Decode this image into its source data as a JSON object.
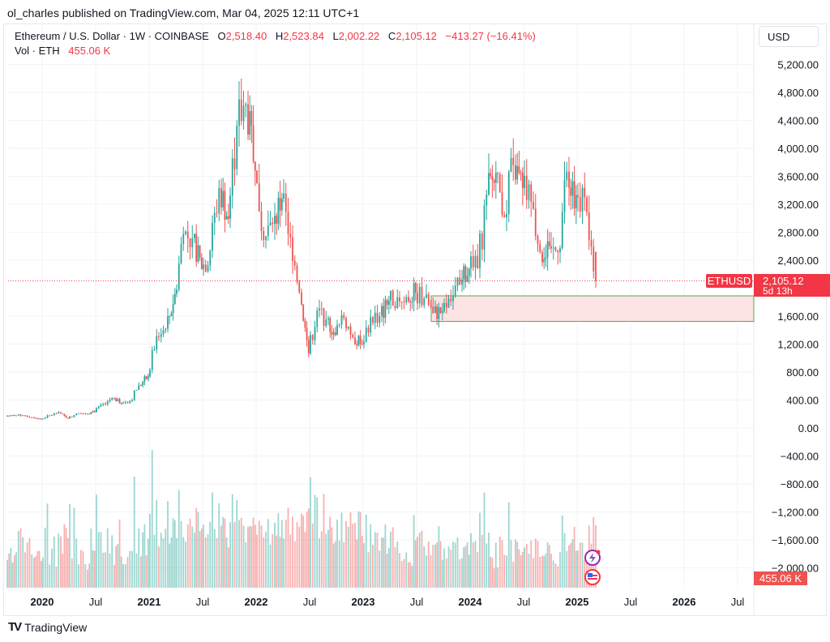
{
  "publisher_line": "ol_charles published on TradingView.com, Mar 04, 2025 12:11 UTC+1",
  "legend": {
    "symbol": "Ethereum / U.S. Dollar · 1W · COINBASE",
    "open_label": "O",
    "open": "2,518.40",
    "high_label": "H",
    "high": "2,523.84",
    "low_label": "L",
    "low": "2,002.22",
    "close_label": "C",
    "close": "2,105.12",
    "change": "−413.27 (−16.41%)",
    "vol_label": "Vol · ETH",
    "vol": "455.06 K"
  },
  "currency_button": "USD",
  "price_tag": {
    "symbol": "ETHUSD",
    "price": "2,105.12",
    "countdown": "5d 13h"
  },
  "volume_tag": "455.06 K",
  "brand": "TradingView",
  "colors": {
    "up": "#26a69a",
    "down": "#ef5350",
    "zone_fill": "#fde3e4",
    "zone_border": "#4caf50",
    "tag": "#f23645"
  },
  "chart_data": {
    "type": "candlestick",
    "interval": "1W",
    "xlabel": "",
    "ylabel": "",
    "ylim": [
      -2150,
      5400
    ],
    "y_ticks": [
      "5,200.00",
      "4,800.00",
      "4,400.00",
      "4,000.00",
      "3,600.00",
      "3,200.00",
      "2,800.00",
      "2,400.00",
      "1,600.00",
      "1,200.00",
      "800.00",
      "400.00",
      "0.00",
      "−400.00",
      "−800.00",
      "−1,200.00",
      "−1,600.00",
      "−2,000.00"
    ],
    "y_tick_values": [
      5200,
      4800,
      4400,
      4000,
      3600,
      3200,
      2800,
      2400,
      1600,
      1200,
      800,
      400,
      0,
      -400,
      -800,
      -1200,
      -1600,
      -2000
    ],
    "x_ticks": [
      "2020",
      "Jul",
      "2021",
      "Jul",
      "2022",
      "Jul",
      "2023",
      "Jul",
      "2024",
      "Jul",
      "2025",
      "Jul",
      "2026",
      "Jul"
    ],
    "x_tick_dates": [
      "2020-01",
      "2020-07",
      "2021-01",
      "2021-07",
      "2022-01",
      "2022-07",
      "2023-01",
      "2023-07",
      "2024-01",
      "2024-07",
      "2025-01",
      "2025-07",
      "2026-01",
      "2026-07"
    ],
    "bold_ticks": [
      "2020",
      "2021",
      "2022",
      "2023",
      "2024",
      "2025",
      "2026"
    ],
    "monthly_close_approx": {
      "months": [
        "2019-09",
        "2019-10",
        "2019-11",
        "2019-12",
        "2020-01",
        "2020-02",
        "2020-03",
        "2020-04",
        "2020-05",
        "2020-06",
        "2020-07",
        "2020-08",
        "2020-09",
        "2020-10",
        "2020-11",
        "2020-12",
        "2021-01",
        "2021-02",
        "2021-03",
        "2021-04",
        "2021-05",
        "2021-06",
        "2021-07",
        "2021-08",
        "2021-09",
        "2021-10",
        "2021-11",
        "2021-12",
        "2022-01",
        "2022-02",
        "2022-03",
        "2022-04",
        "2022-05",
        "2022-06",
        "2022-07",
        "2022-08",
        "2022-09",
        "2022-10",
        "2022-11",
        "2022-12",
        "2023-01",
        "2023-02",
        "2023-03",
        "2023-04",
        "2023-05",
        "2023-06",
        "2023-07",
        "2023-08",
        "2023-09",
        "2023-10",
        "2023-11",
        "2023-12",
        "2024-01",
        "2024-02",
        "2024-03",
        "2024-04",
        "2024-05",
        "2024-06",
        "2024-07",
        "2024-08",
        "2024-09",
        "2024-10",
        "2024-11",
        "2024-12",
        "2025-01",
        "2025-02",
        "2025-03"
      ],
      "close": [
        180,
        182,
        152,
        130,
        180,
        225,
        133,
        207,
        206,
        231,
        345,
        430,
        358,
        385,
        612,
        737,
        1313,
        1418,
        1919,
        2773,
        2714,
        2275,
        2536,
        3431,
        2994,
        4324,
        4630,
        3682,
        2688,
        2919,
        3282,
        2727,
        1942,
        1067,
        1679,
        1553,
        1328,
        1573,
        1295,
        1196,
        1585,
        1605,
        1822,
        1870,
        1874,
        1934,
        1856,
        1645,
        1671,
        1815,
        2052,
        2282,
        2283,
        3340,
        3647,
        3012,
        3760,
        3433,
        3232,
        2513,
        2602,
        2514,
        3668,
        3332,
        3300,
        2237,
        2105
      ]
    },
    "last": {
      "open": 2518.4,
      "high": 2523.84,
      "low": 2002.22,
      "close": 2105.12,
      "volume_k": 455.06
    },
    "zone": {
      "from": "2023-08",
      "to_price_high": 1890,
      "to_price_low": 1525,
      "extends": "right"
    },
    "current_price_line": 2105.12,
    "grid": true
  }
}
